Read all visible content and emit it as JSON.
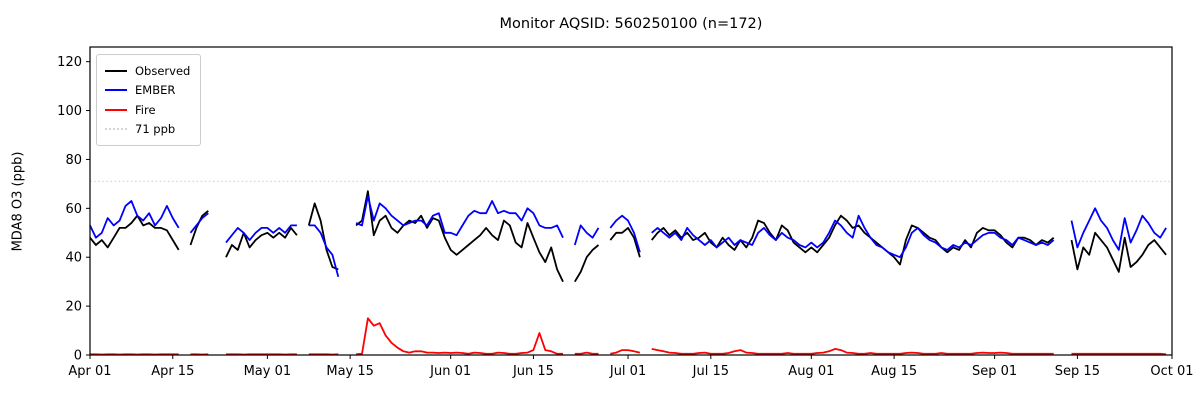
{
  "figure": {
    "title": "Monitor AQSID: 560250100 (n=172)",
    "ylabel": "MDA8 O3 (ppb)"
  },
  "legend": {
    "items": [
      {
        "label": "Observed",
        "color": "#000000",
        "style": "solid"
      },
      {
        "label": "EMBER",
        "color": "#0000ff",
        "style": "solid"
      },
      {
        "label": "Fire",
        "color": "#ff0000",
        "style": "solid"
      },
      {
        "label": "71 ppb",
        "color": "#d3d3d3",
        "style": "dotted"
      }
    ]
  },
  "chart_data": {
    "type": "line",
    "title": "Monitor AQSID: 560250100 (n=172)",
    "xlabel": "",
    "ylabel": "MDA8 O3 (ppb)",
    "ylim": [
      0,
      126
    ],
    "grid": false,
    "legend_position": "upper left",
    "threshold": {
      "value": 71,
      "label": "71 ppb",
      "color": "#d9d9d9",
      "style": "dotted"
    },
    "x_start": "Apr 01",
    "x_end": "Oct 01",
    "n_days": 183,
    "x_ticks": [
      {
        "label": "Apr 01",
        "day": 0
      },
      {
        "label": "Apr 15",
        "day": 14
      },
      {
        "label": "May 01",
        "day": 30
      },
      {
        "label": "May 15",
        "day": 44
      },
      {
        "label": "Jun 01",
        "day": 61
      },
      {
        "label": "Jun 15",
        "day": 75
      },
      {
        "label": "Jul 01",
        "day": 91
      },
      {
        "label": "Jul 15",
        "day": 105
      },
      {
        "label": "Aug 01",
        "day": 122
      },
      {
        "label": "Aug 15",
        "day": 136
      },
      {
        "label": "Sep 01",
        "day": 153
      },
      {
        "label": "Sep 15",
        "day": 167
      },
      {
        "label": "Oct 01",
        "day": 183
      }
    ],
    "y_ticks": [
      0,
      20,
      40,
      60,
      80,
      100,
      120
    ],
    "series": [
      {
        "name": "Observed",
        "color": "#000000",
        "values": [
          48,
          45,
          47,
          44,
          48,
          52,
          52,
          54,
          57,
          53,
          54,
          52,
          52,
          51,
          47,
          43,
          null,
          45,
          52,
          57,
          59,
          null,
          null,
          40,
          45,
          43,
          50,
          44,
          47,
          49,
          50,
          48,
          50,
          48,
          52,
          49,
          null,
          53,
          62,
          55,
          43,
          36,
          35,
          null,
          null,
          53,
          55,
          67,
          49,
          55,
          57,
          52,
          50,
          53,
          55,
          54,
          57,
          52,
          56,
          55,
          48,
          43,
          41,
          43,
          45,
          47,
          49,
          52,
          49,
          47,
          55,
          53,
          46,
          44,
          54,
          48,
          42,
          38,
          44,
          35,
          30,
          null,
          30,
          34,
          40,
          43,
          45,
          null,
          47,
          50,
          50,
          52,
          48,
          40,
          null,
          47,
          50,
          52,
          49,
          51,
          48,
          50,
          47,
          48,
          50,
          46,
          44,
          48,
          45,
          43,
          47,
          44,
          48,
          55,
          54,
          50,
          47,
          53,
          51,
          46,
          44,
          42,
          44,
          42,
          45,
          48,
          53,
          57,
          55,
          52,
          53,
          50,
          48,
          46,
          44,
          42,
          40,
          37,
          47,
          53,
          52,
          50,
          48,
          47,
          44,
          42,
          44,
          43,
          47,
          44,
          50,
          52,
          51,
          51,
          49,
          46,
          44,
          48,
          48,
          47,
          45,
          47,
          46,
          48,
          null,
          null,
          47,
          35,
          44,
          41,
          50,
          47,
          44,
          39,
          34,
          48,
          36,
          38,
          41,
          45,
          47,
          44,
          41
        ]
      },
      {
        "name": "EMBER",
        "color": "#0000ff",
        "values": [
          53,
          48,
          50,
          56,
          53,
          55,
          61,
          63,
          57,
          55,
          58,
          53,
          56,
          61,
          56,
          52,
          null,
          50,
          53,
          56,
          58,
          null,
          null,
          46,
          49,
          52,
          50,
          47,
          50,
          52,
          52,
          50,
          52,
          50,
          53,
          53,
          null,
          53,
          53,
          50,
          44,
          41,
          32,
          null,
          null,
          54,
          53,
          65,
          55,
          62,
          60,
          57,
          55,
          53,
          54,
          55,
          55,
          53,
          57,
          58,
          50,
          50,
          49,
          53,
          57,
          59,
          58,
          58,
          63,
          58,
          59,
          58,
          58,
          55,
          60,
          58,
          53,
          52,
          52,
          53,
          48,
          null,
          45,
          53,
          50,
          48,
          52,
          null,
          52,
          55,
          57,
          55,
          50,
          42,
          null,
          50,
          52,
          50,
          48,
          50,
          47,
          52,
          49,
          47,
          45,
          47,
          44,
          46,
          48,
          45,
          47,
          46,
          45,
          50,
          52,
          49,
          47,
          50,
          48,
          47,
          45,
          44,
          46,
          44,
          46,
          50,
          55,
          53,
          50,
          48,
          57,
          52,
          48,
          45,
          44,
          42,
          41,
          40,
          44,
          50,
          52,
          49,
          47,
          46,
          44,
          43,
          45,
          44,
          46,
          45,
          47,
          49,
          50,
          50,
          48,
          47,
          45,
          48,
          47,
          46,
          45,
          46,
          45,
          47,
          null,
          null,
          55,
          44,
          50,
          55,
          60,
          55,
          52,
          47,
          43,
          56,
          46,
          51,
          57,
          54,
          50,
          48,
          52
        ]
      },
      {
        "name": "Fire",
        "color": "#ff0000",
        "values": [
          0.3,
          0.3,
          0.2,
          0.3,
          0.3,
          0.2,
          0.3,
          0.3,
          0.2,
          0.3,
          0.3,
          0.2,
          0.3,
          0.3,
          0.3,
          0.3,
          null,
          0.3,
          0.3,
          0.2,
          0.3,
          null,
          null,
          0.3,
          0.3,
          0.3,
          0.2,
          0.3,
          0.3,
          0.3,
          0.3,
          0.3,
          0.3,
          0.2,
          0.3,
          0.3,
          null,
          0.3,
          0.3,
          0.3,
          0.3,
          0.2,
          0.3,
          null,
          null,
          0.3,
          0.5,
          15,
          12,
          13,
          8,
          5,
          3,
          1.5,
          1,
          1.5,
          1.5,
          1,
          1,
          0.8,
          1,
          0.8,
          1,
          0.8,
          0.5,
          1,
          0.8,
          0.5,
          0.5,
          1,
          0.8,
          0.5,
          0.5,
          0.8,
          1,
          2,
          9,
          2,
          1.5,
          0.5,
          0.5,
          null,
          0.5,
          0.5,
          1,
          0.5,
          0.5,
          null,
          0.5,
          1,
          2,
          2,
          1.5,
          1,
          null,
          2.5,
          2,
          1.5,
          1,
          0.8,
          0.5,
          0.5,
          0.5,
          0.8,
          1,
          0.5,
          0.5,
          0.5,
          0.8,
          1.5,
          2,
          1,
          0.8,
          0.5,
          0.5,
          0.5,
          0.5,
          0.5,
          0.8,
          0.5,
          0.5,
          0.5,
          0.5,
          0.8,
          1,
          1.5,
          2.5,
          2,
          1,
          0.8,
          0.5,
          0.5,
          0.8,
          0.5,
          0.5,
          0.5,
          0.5,
          0.5,
          0.8,
          1,
          0.8,
          0.5,
          0.5,
          0.5,
          0.8,
          0.5,
          0.5,
          0.5,
          0.5,
          0.5,
          0.8,
          1,
          0.8,
          0.8,
          1,
          0.8,
          0.5,
          0.5,
          0.5,
          0.5,
          0.5,
          0.5,
          0.5,
          0.5,
          null,
          null,
          0.5,
          0.5,
          0.5,
          0.5,
          0.5,
          0.5,
          0.5,
          0.5,
          0.5,
          0.5,
          0.5,
          0.5,
          0.5,
          0.5,
          0.5,
          0.5,
          0.3
        ]
      }
    ]
  }
}
